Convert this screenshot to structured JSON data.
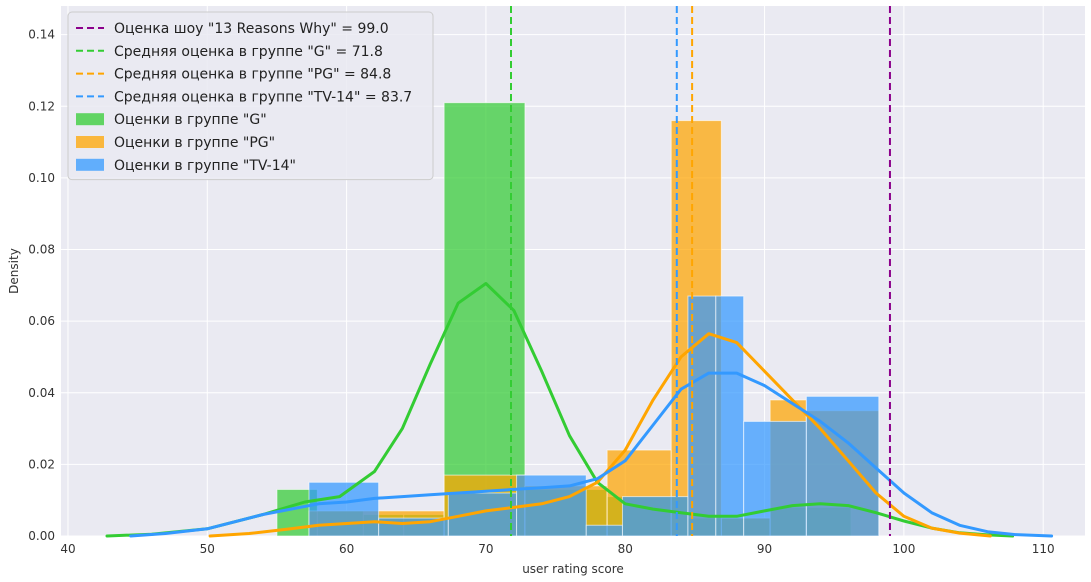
{
  "chart_data": {
    "type": "bar",
    "xlabel": "user rating score",
    "ylabel": "Density",
    "xlim": [
      39.5,
      113
    ],
    "ylim": [
      0,
      0.148
    ],
    "xticks": [
      40,
      50,
      60,
      70,
      80,
      90,
      100,
      110
    ],
    "yticks": [
      0.0,
      0.02,
      0.04,
      0.06,
      0.08,
      0.1,
      0.12,
      0.14
    ],
    "ytick_labels": [
      "0.00",
      "0.02",
      "0.04",
      "0.06",
      "0.08",
      "0.10",
      "0.12",
      "0.14"
    ],
    "grid": true,
    "legend_position": "top-left",
    "series": [
      {
        "name": "Оценки в группе \"G\"",
        "color": "#33cc33",
        "bins": [
          {
            "x0": 55.0,
            "x1": 57.9,
            "y": 0.013
          },
          {
            "x0": 57.9,
            "x1": 61.2,
            "y": 0.007
          },
          {
            "x0": 61.2,
            "x1": 64.1,
            "y": 0.006
          },
          {
            "x0": 64.1,
            "x1": 67.0,
            "y": 0.006
          },
          {
            "x0": 67.0,
            "x1": 72.8,
            "y": 0.121
          },
          {
            "x0": 72.8,
            "x1": 78.7,
            "y": 0.013
          },
          {
            "x0": 78.7,
            "x1": 84.5,
            "y": 0.011
          },
          {
            "x0": 84.5,
            "x1": 90.4,
            "y": 0.005
          },
          {
            "x0": 90.4,
            "x1": 96.2,
            "y": 0.008
          }
        ]
      },
      {
        "name": "Оценки в группе \"PG\"",
        "color": "#ffa500",
        "bins": [
          {
            "x0": 57.3,
            "x1": 67.0,
            "y": 0.007
          },
          {
            "x0": 67.0,
            "x1": 72.8,
            "y": 0.017
          },
          {
            "x0": 72.8,
            "x1": 78.7,
            "y": 0.014
          },
          {
            "x0": 78.7,
            "x1": 83.3,
            "y": 0.024
          },
          {
            "x0": 83.3,
            "x1": 86.9,
            "y": 0.116
          },
          {
            "x0": 86.9,
            "x1": 90.4,
            "y": 0.005
          },
          {
            "x0": 90.4,
            "x1": 93.0,
            "y": 0.038
          },
          {
            "x0": 93.0,
            "x1": 98.2,
            "y": 0.035
          }
        ]
      },
      {
        "name": "Оценки в группе \"TV-14\"",
        "color": "#3399ff",
        "bins": [
          {
            "x0": 57.3,
            "x1": 62.3,
            "y": 0.015
          },
          {
            "x0": 62.3,
            "x1": 67.3,
            "y": 0.005
          },
          {
            "x0": 67.3,
            "x1": 72.2,
            "y": 0.012
          },
          {
            "x0": 72.2,
            "x1": 77.2,
            "y": 0.017
          },
          {
            "x0": 77.2,
            "x1": 79.8,
            "y": 0.003
          },
          {
            "x0": 79.8,
            "x1": 84.5,
            "y": 0.011
          },
          {
            "x0": 84.5,
            "x1": 86.5,
            "y": 0.067
          },
          {
            "x0": 86.5,
            "x1": 88.5,
            "y": 0.067
          },
          {
            "x0": 88.5,
            "x1": 93.0,
            "y": 0.032
          },
          {
            "x0": 93.0,
            "x1": 98.2,
            "y": 0.039
          }
        ]
      }
    ],
    "kde": [
      {
        "name": "G",
        "color": "#33cc33",
        "points": [
          [
            42.8,
            0.0
          ],
          [
            46,
            0.0005
          ],
          [
            50,
            0.002
          ],
          [
            54,
            0.006
          ],
          [
            57,
            0.0095
          ],
          [
            59.5,
            0.011
          ],
          [
            62,
            0.018
          ],
          [
            64,
            0.03
          ],
          [
            66,
            0.048
          ],
          [
            68,
            0.065
          ],
          [
            70,
            0.0705
          ],
          [
            72,
            0.063
          ],
          [
            74,
            0.046
          ],
          [
            76,
            0.028
          ],
          [
            78,
            0.015
          ],
          [
            80,
            0.009
          ],
          [
            82,
            0.0075
          ],
          [
            84,
            0.0065
          ],
          [
            86,
            0.0055
          ],
          [
            88,
            0.0055
          ],
          [
            90,
            0.007
          ],
          [
            92,
            0.0085
          ],
          [
            94,
            0.009
          ],
          [
            96,
            0.0085
          ],
          [
            98,
            0.0065
          ],
          [
            100,
            0.0042
          ],
          [
            102,
            0.0022
          ],
          [
            104,
            0.0009
          ],
          [
            106,
            0.0003
          ],
          [
            107.8,
            0.0
          ]
        ]
      },
      {
        "name": "PG",
        "color": "#ffa500",
        "points": [
          [
            50.2,
            0.0
          ],
          [
            53,
            0.0007
          ],
          [
            56,
            0.002
          ],
          [
            58,
            0.003
          ],
          [
            60,
            0.0035
          ],
          [
            62,
            0.004
          ],
          [
            64,
            0.0035
          ],
          [
            66,
            0.004
          ],
          [
            68,
            0.0055
          ],
          [
            70,
            0.007
          ],
          [
            72,
            0.008
          ],
          [
            74,
            0.009
          ],
          [
            76,
            0.011
          ],
          [
            78,
            0.015
          ],
          [
            80,
            0.024
          ],
          [
            82,
            0.038
          ],
          [
            84,
            0.05
          ],
          [
            86,
            0.0565
          ],
          [
            88,
            0.054
          ],
          [
            90,
            0.046
          ],
          [
            92,
            0.038
          ],
          [
            94,
            0.03
          ],
          [
            96,
            0.021
          ],
          [
            98,
            0.012
          ],
          [
            100,
            0.0055
          ],
          [
            102,
            0.0022
          ],
          [
            104,
            0.0008
          ],
          [
            106.2,
            0.0
          ]
        ]
      },
      {
        "name": "TV-14",
        "color": "#3399ff",
        "points": [
          [
            44.5,
            0.0
          ],
          [
            47,
            0.0007
          ],
          [
            50,
            0.002
          ],
          [
            52,
            0.004
          ],
          [
            54,
            0.006
          ],
          [
            56,
            0.0075
          ],
          [
            58,
            0.009
          ],
          [
            60,
            0.0095
          ],
          [
            62,
            0.0105
          ],
          [
            64,
            0.011
          ],
          [
            66,
            0.0115
          ],
          [
            68,
            0.012
          ],
          [
            70,
            0.0125
          ],
          [
            72,
            0.013
          ],
          [
            74,
            0.0135
          ],
          [
            76,
            0.014
          ],
          [
            78,
            0.016
          ],
          [
            80,
            0.021
          ],
          [
            82,
            0.031
          ],
          [
            84,
            0.041
          ],
          [
            86,
            0.0455
          ],
          [
            88,
            0.0455
          ],
          [
            90,
            0.042
          ],
          [
            92,
            0.037
          ],
          [
            94,
            0.032
          ],
          [
            96,
            0.026
          ],
          [
            98,
            0.019
          ],
          [
            100,
            0.012
          ],
          [
            102,
            0.0065
          ],
          [
            104,
            0.003
          ],
          [
            106,
            0.0012
          ],
          [
            108,
            0.0004
          ],
          [
            110.6,
            0.0
          ]
        ]
      }
    ],
    "vlines": [
      {
        "label": "Оценка шоу \"13 Reasons Why\" = 99.0",
        "x": 99.0,
        "color": "#8b008b"
      },
      {
        "label": "Средняя оценка в группе \"G\" = 71.8",
        "x": 71.8,
        "color": "#33cc33"
      },
      {
        "label": "Средняя оценка в группе \"PG\" = 84.8",
        "x": 84.8,
        "color": "#ffa500"
      },
      {
        "label": "Средняя оценка в группе \"TV-14\" = 83.7",
        "x": 83.7,
        "color": "#3399ff"
      }
    ],
    "legend": [
      {
        "label": "Оценка шоу \"13 Reasons Why\" = 99.0",
        "color": "#8b008b",
        "kind": "line"
      },
      {
        "label": "Средняя оценка в группе \"G\" = 71.8",
        "color": "#33cc33",
        "kind": "line"
      },
      {
        "label": "Средняя оценка в группе \"PG\" = 84.8",
        "color": "#ffa500",
        "kind": "line"
      },
      {
        "label": "Средняя оценка в группе \"TV-14\" = 83.7",
        "color": "#3399ff",
        "kind": "line"
      },
      {
        "label": "Оценки в группе \"G\"",
        "color": "#33cc33",
        "kind": "patch"
      },
      {
        "label": "Оценки в группе \"PG\"",
        "color": "#ffa500",
        "kind": "patch"
      },
      {
        "label": "Оценки в группе \"TV-14\"",
        "color": "#3399ff",
        "kind": "patch"
      }
    ]
  }
}
